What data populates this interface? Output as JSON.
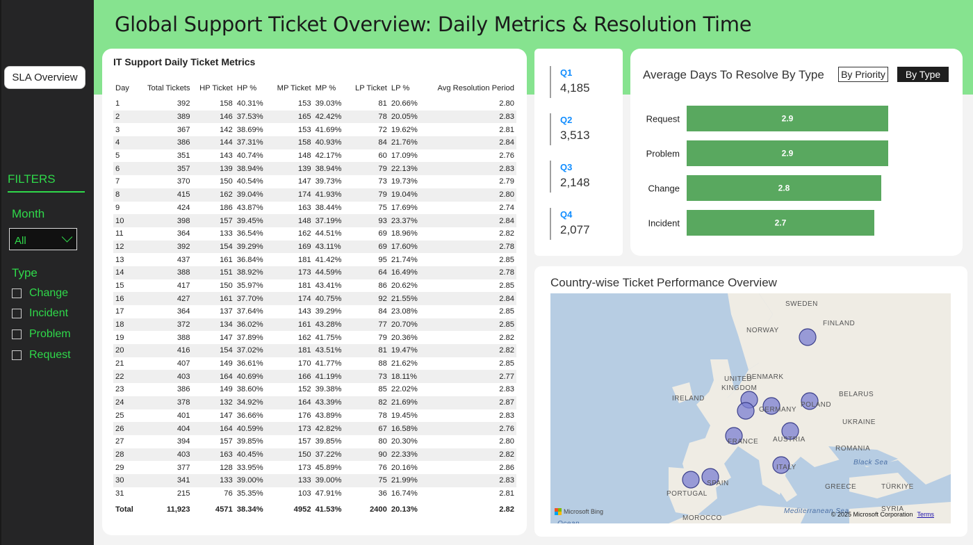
{
  "header": {
    "title": "Global Support Ticket Overview: Daily Metrics & Resolution Time"
  },
  "sidebar": {
    "sla_button": "SLA Overview",
    "filters_label": "FILTERS",
    "month_label": "Month",
    "month_value": "All",
    "type_label": "Type",
    "type_options": [
      "Change",
      "Incident",
      "Problem",
      "Request"
    ]
  },
  "table": {
    "title": "IT Support Daily Ticket Metrics",
    "columns": [
      "Day",
      "Total Tickets",
      "HP Ticket",
      "HP %",
      "MP Ticket",
      "MP %",
      "LP Ticket",
      "LP %",
      "Avg Resolution Period"
    ],
    "rows": [
      [
        "1",
        "392",
        "158",
        "40.31%",
        "153",
        "39.03%",
        "81",
        "20.66%",
        "2.80"
      ],
      [
        "2",
        "389",
        "146",
        "37.53%",
        "165",
        "42.42%",
        "78",
        "20.05%",
        "2.83"
      ],
      [
        "3",
        "367",
        "142",
        "38.69%",
        "153",
        "41.69%",
        "72",
        "19.62%",
        "2.81"
      ],
      [
        "4",
        "386",
        "144",
        "37.31%",
        "158",
        "40.93%",
        "84",
        "21.76%",
        "2.84"
      ],
      [
        "5",
        "351",
        "143",
        "40.74%",
        "148",
        "42.17%",
        "60",
        "17.09%",
        "2.76"
      ],
      [
        "6",
        "357",
        "139",
        "38.94%",
        "139",
        "38.94%",
        "79",
        "22.13%",
        "2.83"
      ],
      [
        "7",
        "370",
        "150",
        "40.54%",
        "147",
        "39.73%",
        "73",
        "19.73%",
        "2.79"
      ],
      [
        "8",
        "415",
        "162",
        "39.04%",
        "174",
        "41.93%",
        "79",
        "19.04%",
        "2.80"
      ],
      [
        "9",
        "424",
        "186",
        "43.87%",
        "163",
        "38.44%",
        "75",
        "17.69%",
        "2.74"
      ],
      [
        "10",
        "398",
        "157",
        "39.45%",
        "148",
        "37.19%",
        "93",
        "23.37%",
        "2.84"
      ],
      [
        "11",
        "364",
        "133",
        "36.54%",
        "162",
        "44.51%",
        "69",
        "18.96%",
        "2.82"
      ],
      [
        "12",
        "392",
        "154",
        "39.29%",
        "169",
        "43.11%",
        "69",
        "17.60%",
        "2.78"
      ],
      [
        "13",
        "437",
        "161",
        "36.84%",
        "181",
        "41.42%",
        "95",
        "21.74%",
        "2.85"
      ],
      [
        "14",
        "388",
        "151",
        "38.92%",
        "173",
        "44.59%",
        "64",
        "16.49%",
        "2.78"
      ],
      [
        "15",
        "417",
        "150",
        "35.97%",
        "181",
        "43.41%",
        "86",
        "20.62%",
        "2.85"
      ],
      [
        "16",
        "427",
        "161",
        "37.70%",
        "174",
        "40.75%",
        "92",
        "21.55%",
        "2.84"
      ],
      [
        "17",
        "364",
        "137",
        "37.64%",
        "143",
        "39.29%",
        "84",
        "23.08%",
        "2.85"
      ],
      [
        "18",
        "372",
        "134",
        "36.02%",
        "161",
        "43.28%",
        "77",
        "20.70%",
        "2.85"
      ],
      [
        "19",
        "388",
        "147",
        "37.89%",
        "162",
        "41.75%",
        "79",
        "20.36%",
        "2.82"
      ],
      [
        "20",
        "416",
        "154",
        "37.02%",
        "181",
        "43.51%",
        "81",
        "19.47%",
        "2.82"
      ],
      [
        "21",
        "407",
        "149",
        "36.61%",
        "170",
        "41.77%",
        "88",
        "21.62%",
        "2.85"
      ],
      [
        "22",
        "403",
        "164",
        "40.69%",
        "166",
        "41.19%",
        "73",
        "18.11%",
        "2.77"
      ],
      [
        "23",
        "386",
        "149",
        "38.60%",
        "152",
        "39.38%",
        "85",
        "22.02%",
        "2.83"
      ],
      [
        "24",
        "378",
        "132",
        "34.92%",
        "164",
        "43.39%",
        "82",
        "21.69%",
        "2.87"
      ],
      [
        "25",
        "401",
        "147",
        "36.66%",
        "176",
        "43.89%",
        "78",
        "19.45%",
        "2.83"
      ],
      [
        "26",
        "404",
        "164",
        "40.59%",
        "173",
        "42.82%",
        "67",
        "16.58%",
        "2.76"
      ],
      [
        "27",
        "394",
        "157",
        "39.85%",
        "157",
        "39.85%",
        "80",
        "20.30%",
        "2.80"
      ],
      [
        "28",
        "403",
        "163",
        "40.45%",
        "150",
        "37.22%",
        "90",
        "22.33%",
        "2.82"
      ],
      [
        "29",
        "377",
        "128",
        "33.95%",
        "173",
        "45.89%",
        "76",
        "20.16%",
        "2.86"
      ],
      [
        "30",
        "341",
        "133",
        "39.00%",
        "133",
        "39.00%",
        "75",
        "21.99%",
        "2.83"
      ],
      [
        "31",
        "215",
        "76",
        "35.35%",
        "103",
        "47.91%",
        "36",
        "16.74%",
        "2.81"
      ]
    ],
    "total": [
      "Total",
      "11,923",
      "4571",
      "38.34%",
      "4952",
      "41.53%",
      "2400",
      "20.13%",
      "2.82"
    ]
  },
  "quarters": [
    {
      "label": "Q1",
      "value": "4,185"
    },
    {
      "label": "Q2",
      "value": "3,513"
    },
    {
      "label": "Q3",
      "value": "2,148"
    },
    {
      "label": "Q4",
      "value": "2,077"
    }
  ],
  "resolve_panel": {
    "title": "Average Days To Resolve By Type",
    "btn_priority": "By Priority",
    "btn_type": "By Type"
  },
  "chart_data": {
    "type": "bar",
    "orientation": "horizontal",
    "title": "Average Days To Resolve By Type",
    "categories": [
      "Request",
      "Problem",
      "Change",
      "Incident"
    ],
    "values": [
      2.9,
      2.9,
      2.8,
      2.7
    ],
    "data_labels": [
      "2.9",
      "2.9",
      "2.8",
      "2.7"
    ],
    "xlim": [
      0,
      3.2
    ],
    "bar_color": "#59a85f",
    "grid": false
  },
  "map": {
    "title": "Country-wise Ticket Performance Overview",
    "labels": [
      "SWEDEN",
      "FINLAND",
      "NORWAY",
      "DENMARK",
      "UNITED",
      "KINGDOM",
      "IRELAND",
      "BELARUS",
      "POLAND",
      "GERMANY",
      "UKRAINE",
      "FRANCE",
      "AUSTRIA",
      "ROMANIA",
      "Black Sea",
      "ITALY",
      "SPAIN",
      "PORTUGAL",
      "GREECE",
      "TÜRKIYE",
      "Mediterranean Sea",
      "MOROCCO",
      "SYRIA",
      "Ocean"
    ],
    "bing": "Microsoft Bing",
    "copyright": "© 2025 Microsoft Corporation",
    "terms": "Terms",
    "bubble_color": "#7b7fd1"
  }
}
